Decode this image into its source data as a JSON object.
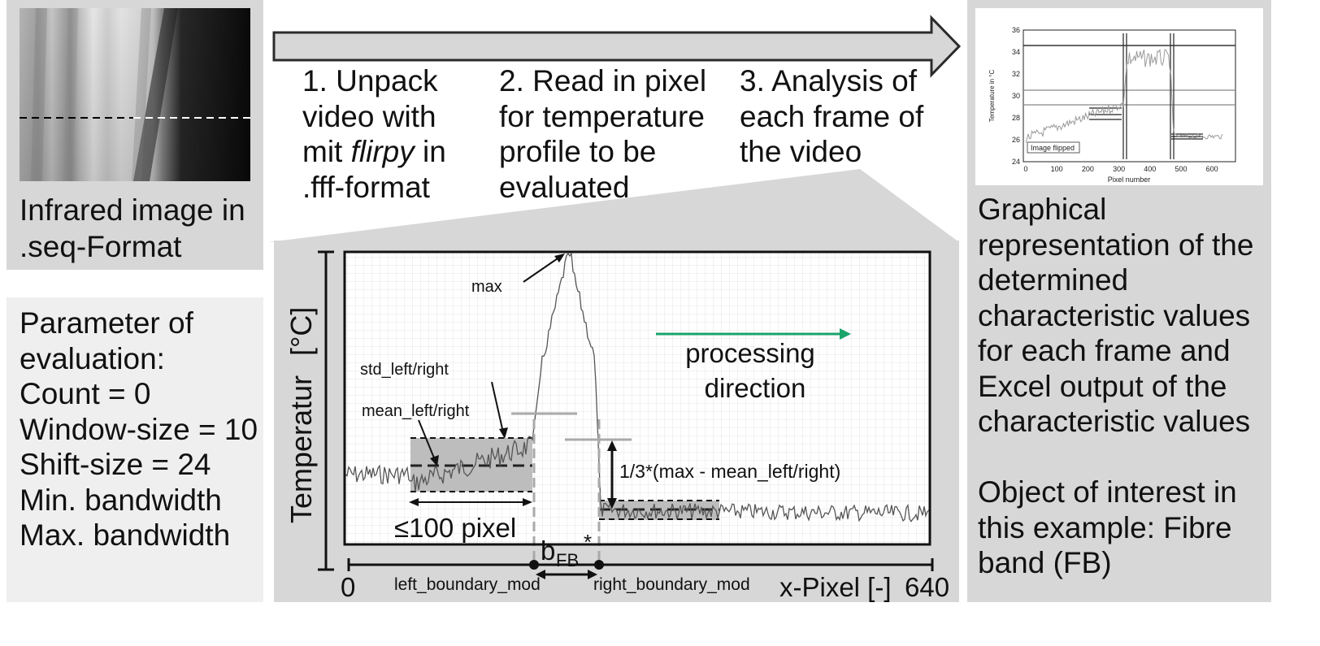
{
  "infrared_panel": {
    "caption_lines": [
      "Infrared image in",
      ".seq-Format"
    ]
  },
  "parameters": {
    "lines": [
      "Parameter of",
      "evaluation:",
      "Count = 0",
      "Window-size = 10",
      "Shift-size = 24",
      "Min. bandwidth",
      "Max. bandwidth"
    ]
  },
  "steps": [
    {
      "lines": [
        "1. Unpack",
        "video with"
      ],
      "line3_prefix": "mit ",
      "line3_italic": "flirpy",
      "line3_suffix": " in",
      "line4": ".fff-format"
    },
    {
      "lines": [
        "2. Read in pixel",
        "for temperature",
        "profile to be",
        "evaluated"
      ]
    },
    {
      "lines": [
        "3. Analysis of",
        "each frame of",
        "the video"
      ]
    }
  ],
  "main_chart": {
    "y_axis_label": "Temperatur",
    "y_axis_unit": "[°C]",
    "x_axis_label": "x-Pixel [-]",
    "x_min_label": "0",
    "x_max_label": "640",
    "annotations": {
      "max": "max",
      "std": "std_left/right",
      "mean": "mean_left/right",
      "window": "≤100 pixel",
      "third": "1/3*(max - mean_left/right)",
      "processing_1": "processing",
      "processing_2": "direction",
      "bfb_main": "b",
      "bfb_sub": "FB",
      "bfb_star": "*",
      "left_boundary": "left_boundary_mod",
      "right_boundary": "right_boundary_mod"
    },
    "arrow_color": "#1aa36b",
    "profile_color": "#555555"
  },
  "mini_chart": {
    "y_label": "Temperature in °C",
    "x_label": "Pixel number",
    "y_ticks": [
      "36",
      "34",
      "32",
      "30",
      "28",
      "26",
      "24"
    ],
    "x_ticks": [
      "0",
      "100",
      "200",
      "300",
      "400",
      "500",
      "600"
    ],
    "legend": "Image flipped"
  },
  "graphical_panel": {
    "lines": [
      "Graphical",
      "representation of the",
      "determined",
      "characteristic values",
      "for each frame and",
      "Excel output of the",
      "characteristic values"
    ],
    "object_lines": [
      "Object of interest in",
      "this example: Fibre",
      "band (FB)"
    ]
  }
}
